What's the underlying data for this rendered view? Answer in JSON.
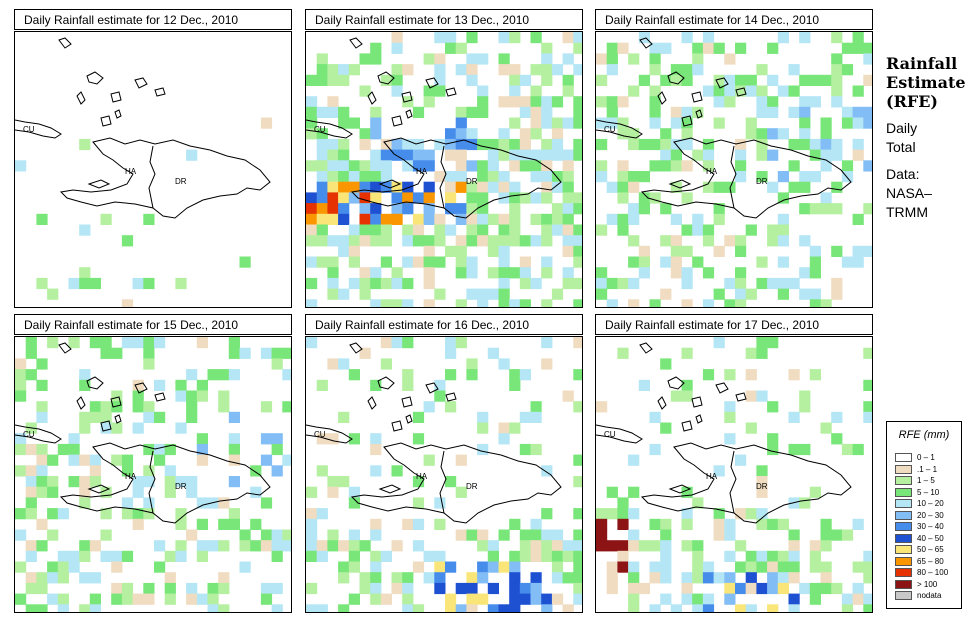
{
  "panels": [
    {
      "title": "Daily Rainfall estimate for  12 Dec., 2010",
      "seed": 11,
      "density": 0.08,
      "zone": "low"
    },
    {
      "title": "Daily Rainfall estimate for  13 Dec., 2010",
      "seed": 23,
      "density": 0.55,
      "zone": "heavy"
    },
    {
      "title": "Daily Rainfall estimate for  14 Dec., 2010",
      "seed": 37,
      "density": 0.45,
      "zone": "mid"
    },
    {
      "title": "Daily Rainfall estimate for  15 Dec., 2010",
      "seed": 41,
      "density": 0.4,
      "zone": "mid"
    },
    {
      "title": "Daily Rainfall estimate for  16 Dec., 2010",
      "seed": 53,
      "density": 0.3,
      "zone": "south"
    },
    {
      "title": "Daily Rainfall estimate for  17 Dec., 2010",
      "seed": 67,
      "density": 0.25,
      "zone": "southwest"
    }
  ],
  "map_labels": {
    "cu": "CU",
    "ha": "HA",
    "dr": "DR"
  },
  "side": {
    "title_1": "Rainfall",
    "title_2": "Estimate",
    "title_3": "(RFE)",
    "daily": "Daily",
    "total": "Total",
    "data": "Data:",
    "nasa": "NASA–",
    "trmm": "TRMM"
  },
  "legend": {
    "title": "RFE (mm)",
    "items": [
      {
        "label": "0 – 1",
        "color": "#ffffff"
      },
      {
        "label": ".1 – 1",
        "color": "#f0dcc0"
      },
      {
        "label": "1 – 5",
        "color": "#b4f0a0"
      },
      {
        "label": "5 – 10",
        "color": "#78e678"
      },
      {
        "label": "10 – 20",
        "color": "#b4e6f5"
      },
      {
        "label": "20 – 30",
        "color": "#82bef5"
      },
      {
        "label": "30 – 40",
        "color": "#468ceb"
      },
      {
        "label": "40 – 50",
        "color": "#1e50d2"
      },
      {
        "label": "50 – 65",
        "color": "#fae678"
      },
      {
        "label": "65 – 80",
        "color": "#fa9600"
      },
      {
        "label": "80 – 100",
        "color": "#e63200"
      },
      {
        "label": "> 100",
        "color": "#8c1414"
      },
      {
        "label": "nodata",
        "color": "#c8c8c8"
      }
    ]
  }
}
